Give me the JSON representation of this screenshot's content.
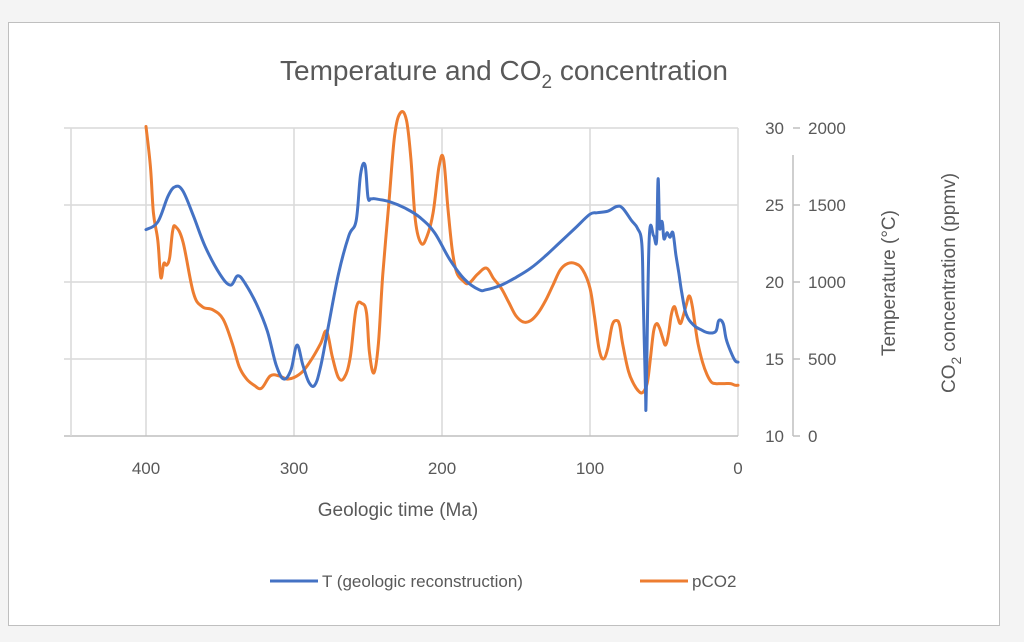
{
  "chart_data": {
    "type": "line",
    "title": "Temperature and CO₂ concentration",
    "title_parts": {
      "main": "Temperature and CO",
      "sub": "2",
      "rest": " concentration"
    },
    "xlabel": "Geologic time (Ma)",
    "ylabel_temperature": "Temperature (°C)",
    "ylabel_co2": {
      "main": "CO",
      "sub": "2",
      "rest": " concentration (ppmv)"
    },
    "x_reversed": true,
    "xlim": [
      450,
      0
    ],
    "x_ticks": [
      400,
      300,
      200,
      100,
      0
    ],
    "y_temperature_lim": [
      10,
      30
    ],
    "y_temperature_ticks": [
      10,
      15,
      20,
      25,
      30
    ],
    "y_co2_lim": [
      0,
      2000
    ],
    "y_co2_ticks": [
      0,
      500,
      1000,
      1500,
      2000
    ],
    "grid": true,
    "legend_position": "bottom",
    "series": [
      {
        "name": "T (geologic reconstruction)",
        "axis": "temperature",
        "color": "#4472c4",
        "x": [
          400,
          392,
          385,
          380,
          375,
          368,
          360,
          350,
          343,
          338,
          333,
          325,
          318,
          312,
          307,
          302,
          298,
          294,
          290,
          286,
          282,
          277,
          270,
          263,
          258,
          255,
          252,
          250,
          248,
          245,
          235,
          225,
          215,
          205,
          195,
          185,
          175,
          170,
          160,
          150,
          140,
          130,
          120,
          110,
          100,
          95,
          88,
          82,
          78,
          72,
          68,
          65,
          64,
          62.5,
          62,
          60,
          57,
          55,
          54,
          53,
          52,
          51,
          50,
          48,
          46,
          44,
          42,
          40,
          38,
          35,
          30,
          25,
          20,
          15,
          13,
          10,
          8,
          5,
          2,
          0
        ],
        "y": [
          23.4,
          23.9,
          25.6,
          26.2,
          25.9,
          24.3,
          22.3,
          20.5,
          19.8,
          20.4,
          19.9,
          18.5,
          16.8,
          14.6,
          13.7,
          14.3,
          15.9,
          14.6,
          13.5,
          13.3,
          14.5,
          17.0,
          20.5,
          23.0,
          24.0,
          27.0,
          27.6,
          25.5,
          25.4,
          25.4,
          25.2,
          24.8,
          24.2,
          23.2,
          21.5,
          20.2,
          19.5,
          19.5,
          19.8,
          20.3,
          20.9,
          21.7,
          22.6,
          23.5,
          24.4,
          24.5,
          24.6,
          24.9,
          24.8,
          24.0,
          23.5,
          22.5,
          18.8,
          13.0,
          12.6,
          22.8,
          23.0,
          22.7,
          26.7,
          23.6,
          23.9,
          23.8,
          22.8,
          23.2,
          22.9,
          23.2,
          21.8,
          20.6,
          19.3,
          17.9,
          17.2,
          16.9,
          16.7,
          16.8,
          17.5,
          17.3,
          16.3,
          15.5,
          14.9,
          14.8
        ]
      },
      {
        "name": "pCO2",
        "axis": "co2",
        "color": "#ed7d31",
        "x": [
          400,
          397,
          395,
          392,
          390,
          388,
          386,
          384,
          382,
          380,
          375,
          368,
          362,
          355,
          348,
          342,
          337,
          332,
          327,
          322,
          316,
          310,
          305,
          300,
          294,
          288,
          282,
          278,
          274,
          270,
          266,
          262,
          258,
          254,
          251,
          249,
          246,
          243,
          240,
          236,
          232,
          228,
          224,
          221,
          218,
          214,
          210,
          206,
          202,
          199,
          196,
          193,
          190,
          186,
          182,
          176,
          170,
          165,
          160,
          155,
          150,
          145,
          140,
          135,
          130,
          125,
          120,
          115,
          110,
          105,
          100,
          97,
          94,
          91,
          88,
          85,
          82,
          80,
          78,
          74,
          70,
          67,
          65,
          63,
          61,
          59,
          57,
          55,
          53,
          51,
          49,
          47,
          45,
          43,
          41,
          39,
          37,
          35,
          33,
          31,
          29,
          27,
          24,
          21,
          18,
          15,
          12,
          9,
          5,
          2,
          0
        ],
        "y": [
          2010,
          1750,
          1450,
          1270,
          1030,
          1120,
          1110,
          1160,
          1330,
          1360,
          1260,
          930,
          840,
          820,
          760,
          610,
          450,
          370,
          330,
          310,
          390,
          390,
          370,
          380,
          420,
          500,
          600,
          680,
          510,
          380,
          380,
          510,
          830,
          860,
          800,
          540,
          410,
          600,
          1050,
          1500,
          1950,
          2100,
          2050,
          1800,
          1400,
          1250,
          1300,
          1450,
          1750,
          1800,
          1480,
          1200,
          1060,
          1010,
          990,
          1050,
          1090,
          1020,
          960,
          870,
          780,
          740,
          750,
          800,
          880,
          980,
          1080,
          1120,
          1120,
          1080,
          960,
          780,
          570,
          500,
          570,
          720,
          750,
          720,
          600,
          420,
          330,
          290,
          280,
          300,
          360,
          520,
          680,
          730,
          700,
          640,
          590,
          660,
          790,
          840,
          780,
          730,
          780,
          850,
          910,
          850,
          720,
          600,
          480,
          400,
          350,
          340,
          340,
          340,
          340,
          330,
          330
        ]
      }
    ]
  }
}
